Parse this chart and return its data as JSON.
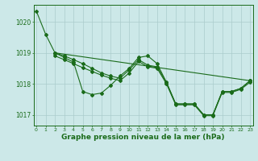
{
  "bg_color": "#cce8e8",
  "grid_color": "#aacccc",
  "line_color": "#1a6b1a",
  "ylabel_values": [
    1017,
    1018,
    1019,
    1020
  ],
  "xlim": [
    -0.3,
    23.3
  ],
  "ylim": [
    1016.65,
    1020.55
  ],
  "xlabel": "Graphe pression niveau de la mer (hPa)",
  "line1": {
    "x": [
      0,
      1,
      2,
      3,
      4,
      5,
      6,
      7,
      8,
      9,
      10,
      11,
      12,
      13,
      14,
      15,
      16,
      17,
      18,
      19,
      20,
      21,
      22,
      23
    ],
    "y": [
      1020.35,
      1019.6,
      1019.0,
      1018.85,
      1018.7,
      1017.75,
      1017.65,
      1017.7,
      1017.95,
      1018.25,
      1018.5,
      1018.85,
      1018.9,
      1018.65,
      1018.05,
      1017.35,
      1017.35,
      1017.35,
      1017.0,
      1017.0,
      1017.75,
      1017.75,
      1017.85,
      1018.1
    ]
  },
  "line2": {
    "x": [
      2,
      3,
      4,
      5,
      6,
      7,
      8,
      9,
      10,
      11,
      12,
      13,
      14,
      15,
      16,
      17,
      18,
      19,
      20,
      21,
      22,
      23
    ],
    "y": [
      1019.0,
      1018.9,
      1018.78,
      1018.65,
      1018.5,
      1018.35,
      1018.25,
      1018.18,
      1018.45,
      1018.78,
      1018.6,
      1018.55,
      1018.05,
      1017.35,
      1017.35,
      1017.35,
      1017.0,
      1017.0,
      1017.75,
      1017.75,
      1017.85,
      1018.1
    ]
  },
  "line3": {
    "x": [
      2,
      3,
      4,
      5,
      6,
      7,
      8,
      9,
      10,
      11,
      12,
      13,
      14,
      15,
      16,
      17,
      18,
      19,
      20,
      21,
      22,
      23
    ],
    "y": [
      1018.9,
      1018.78,
      1018.65,
      1018.52,
      1018.4,
      1018.28,
      1018.18,
      1018.1,
      1018.35,
      1018.72,
      1018.55,
      1018.5,
      1018.0,
      1017.32,
      1017.32,
      1017.32,
      1016.97,
      1016.97,
      1017.72,
      1017.72,
      1017.82,
      1018.05
    ]
  },
  "line4": {
    "x": [
      2,
      23
    ],
    "y": [
      1019.0,
      1018.1
    ]
  }
}
